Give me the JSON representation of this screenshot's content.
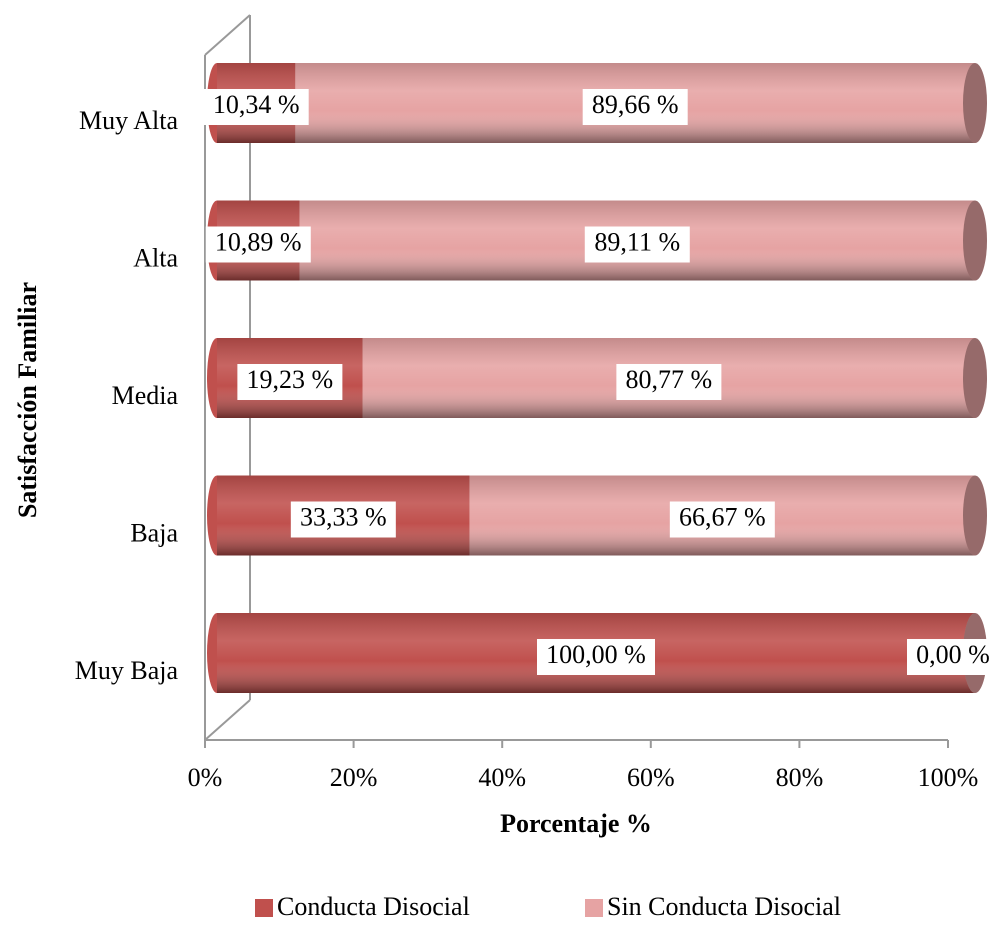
{
  "chart_data": {
    "type": "bar",
    "orientation": "horizontal",
    "stacked": true,
    "x_label": "Porcentaje %",
    "y_label": "Satisfacción Familiar",
    "categories": [
      "Muy Baja",
      "Baja",
      "Media",
      "Alta",
      "Muy Alta"
    ],
    "series": [
      {
        "name": "Conducta Disocial",
        "color": "#c0504d",
        "values": [
          100,
          33.33,
          19.23,
          10.89,
          10.34
        ],
        "value_labels": [
          "100,00 %",
          "33,33 %",
          "19,23 %",
          "10,89 %",
          "10,34 %"
        ]
      },
      {
        "name": "Sin Conducta Disocial",
        "color": "#e6a3a3",
        "values": [
          0,
          66.67,
          80.77,
          89.11,
          89.66
        ],
        "value_labels": [
          "0,00 %",
          "66,67 %",
          "80,77 %",
          "89,11 %",
          "89,66 %"
        ]
      }
    ],
    "xlim": [
      0,
      100
    ],
    "xticks": [
      {
        "value": 0,
        "label": "0%"
      },
      {
        "value": 20,
        "label": "20%"
      },
      {
        "value": 40,
        "label": "40%"
      },
      {
        "value": 60,
        "label": "60%"
      },
      {
        "value": 80,
        "label": "80%"
      },
      {
        "value": 100,
        "label": "100%"
      }
    ],
    "grid": false,
    "legend": "bottom"
  }
}
